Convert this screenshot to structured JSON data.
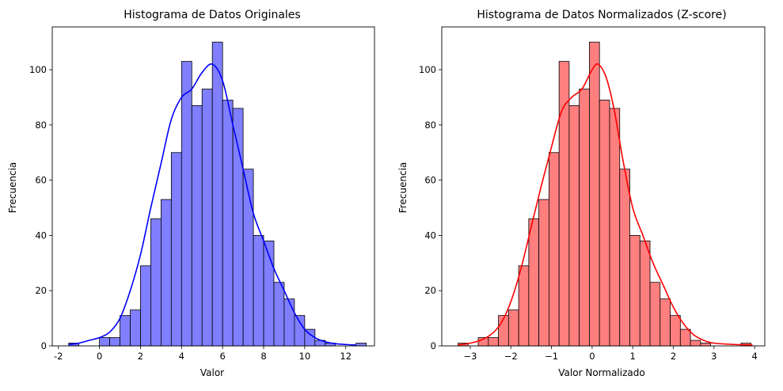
{
  "chart_data": [
    {
      "type": "bar",
      "title": "Histograma de Datos Originales",
      "xlabel": "Valor",
      "ylabel": "Frecuencia",
      "color": "#0000ff",
      "bar_fill": "#7f7fff",
      "xlim": [
        -2.3,
        13.4
      ],
      "ylim": [
        0,
        115.5
      ],
      "xticks": [
        "-2",
        "0",
        "2",
        "4",
        "6",
        "8",
        "10",
        "12"
      ],
      "xtick_values": [
        -2,
        0,
        2,
        4,
        6,
        8,
        10,
        12
      ],
      "yticks": [
        "0",
        "20",
        "40",
        "60",
        "80",
        "100"
      ],
      "ytick_values": [
        0,
        20,
        40,
        60,
        80,
        100
      ],
      "bin_start": -1.5,
      "bin_width": 0.5,
      "counts": [
        1,
        0,
        0,
        3,
        3,
        11,
        13,
        29,
        46,
        53,
        70,
        103,
        87,
        93,
        110,
        89,
        86,
        64,
        40,
        38,
        23,
        17,
        11,
        6,
        2,
        1,
        0,
        0,
        1
      ],
      "kde": {
        "x": [
          -1.5,
          -1.0,
          -0.5,
          0.0,
          0.5,
          1.0,
          1.5,
          2.0,
          2.5,
          3.0,
          3.5,
          4.0,
          4.5,
          5.0,
          5.5,
          6.0,
          6.5,
          7.0,
          7.5,
          8.0,
          8.5,
          9.0,
          9.5,
          10.0,
          10.5,
          11.0,
          11.5,
          12.0,
          12.5
        ],
        "y": [
          0.5,
          1,
          2,
          3,
          5,
          10,
          20,
          33,
          50,
          66,
          82,
          90,
          93,
          99,
          102,
          96,
          80,
          64,
          48,
          38,
          28,
          20,
          12,
          6,
          3,
          1.5,
          0.8,
          0.5,
          0.3
        ]
      }
    },
    {
      "type": "bar",
      "title": "Histograma de Datos Normalizados (Z-score)",
      "xlabel": "Valor Normalizado",
      "ylabel": "Frecuencia",
      "color": "#ff0000",
      "bar_fill": "#ff7f7f",
      "xlim": [
        -3.7,
        4.25
      ],
      "ylim": [
        0,
        115.5
      ],
      "xticks": [
        "−3",
        "−2",
        "−1",
        "0",
        "1",
        "2",
        "3",
        "4"
      ],
      "xtick_values": [
        -3,
        -2,
        -1,
        0,
        1,
        2,
        3,
        4
      ],
      "yticks": [
        "0",
        "20",
        "40",
        "60",
        "80",
        "100"
      ],
      "ytick_values": [
        0,
        20,
        40,
        60,
        80,
        100
      ],
      "bin_start": -3.3,
      "bin_width": 0.2487,
      "counts": [
        1,
        0,
        3,
        3,
        11,
        13,
        29,
        46,
        53,
        70,
        103,
        87,
        93,
        110,
        89,
        86,
        64,
        40,
        38,
        23,
        17,
        11,
        6,
        2,
        1,
        0,
        0,
        0,
        1
      ],
      "kde": {
        "x": [
          -3.3,
          -3.0,
          -2.75,
          -2.5,
          -2.25,
          -2.0,
          -1.75,
          -1.5,
          -1.25,
          -1.0,
          -0.75,
          -0.5,
          -0.25,
          0.0,
          0.15,
          0.35,
          0.55,
          0.75,
          1.0,
          1.25,
          1.5,
          1.75,
          2.0,
          2.25,
          2.5,
          2.75,
          3.0,
          3.5,
          3.95
        ],
        "y": [
          0.3,
          1,
          2,
          4,
          8,
          16,
          28,
          43,
          58,
          72,
          85,
          90,
          93,
          100,
          102,
          97,
          85,
          68,
          50,
          40,
          30,
          22,
          14,
          8,
          4,
          2,
          1,
          0.5,
          0.3
        ]
      }
    }
  ]
}
